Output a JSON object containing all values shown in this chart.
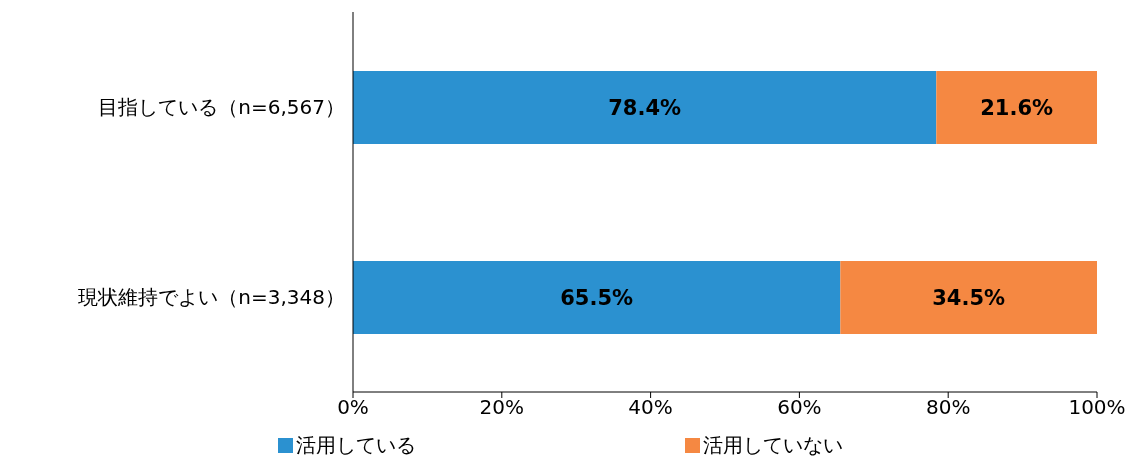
{
  "chart_data": {
    "type": "bar",
    "orientation": "horizontal",
    "stacked": true,
    "categories": [
      "目指している（n=6,567）",
      "現状維持でよい（n=3,348）"
    ],
    "series": [
      {
        "name": "活用している",
        "color": "#2b91d0",
        "values": [
          78.4,
          65.5
        ],
        "value_labels": [
          "78.4%",
          "65.5%"
        ]
      },
      {
        "name": "活用していない",
        "color": "#f58842",
        "values": [
          21.6,
          34.5
        ],
        "value_labels": [
          "21.6%",
          "34.5%"
        ]
      }
    ],
    "xlim": [
      0,
      100
    ],
    "xticks": [
      {
        "value": 0,
        "label": "0%"
      },
      {
        "value": 20,
        "label": "20%"
      },
      {
        "value": 40,
        "label": "40%"
      },
      {
        "value": 60,
        "label": "60%"
      },
      {
        "value": 80,
        "label": "80%"
      },
      {
        "value": 100,
        "label": "100%"
      }
    ],
    "grid": false,
    "legend": "bottom"
  }
}
